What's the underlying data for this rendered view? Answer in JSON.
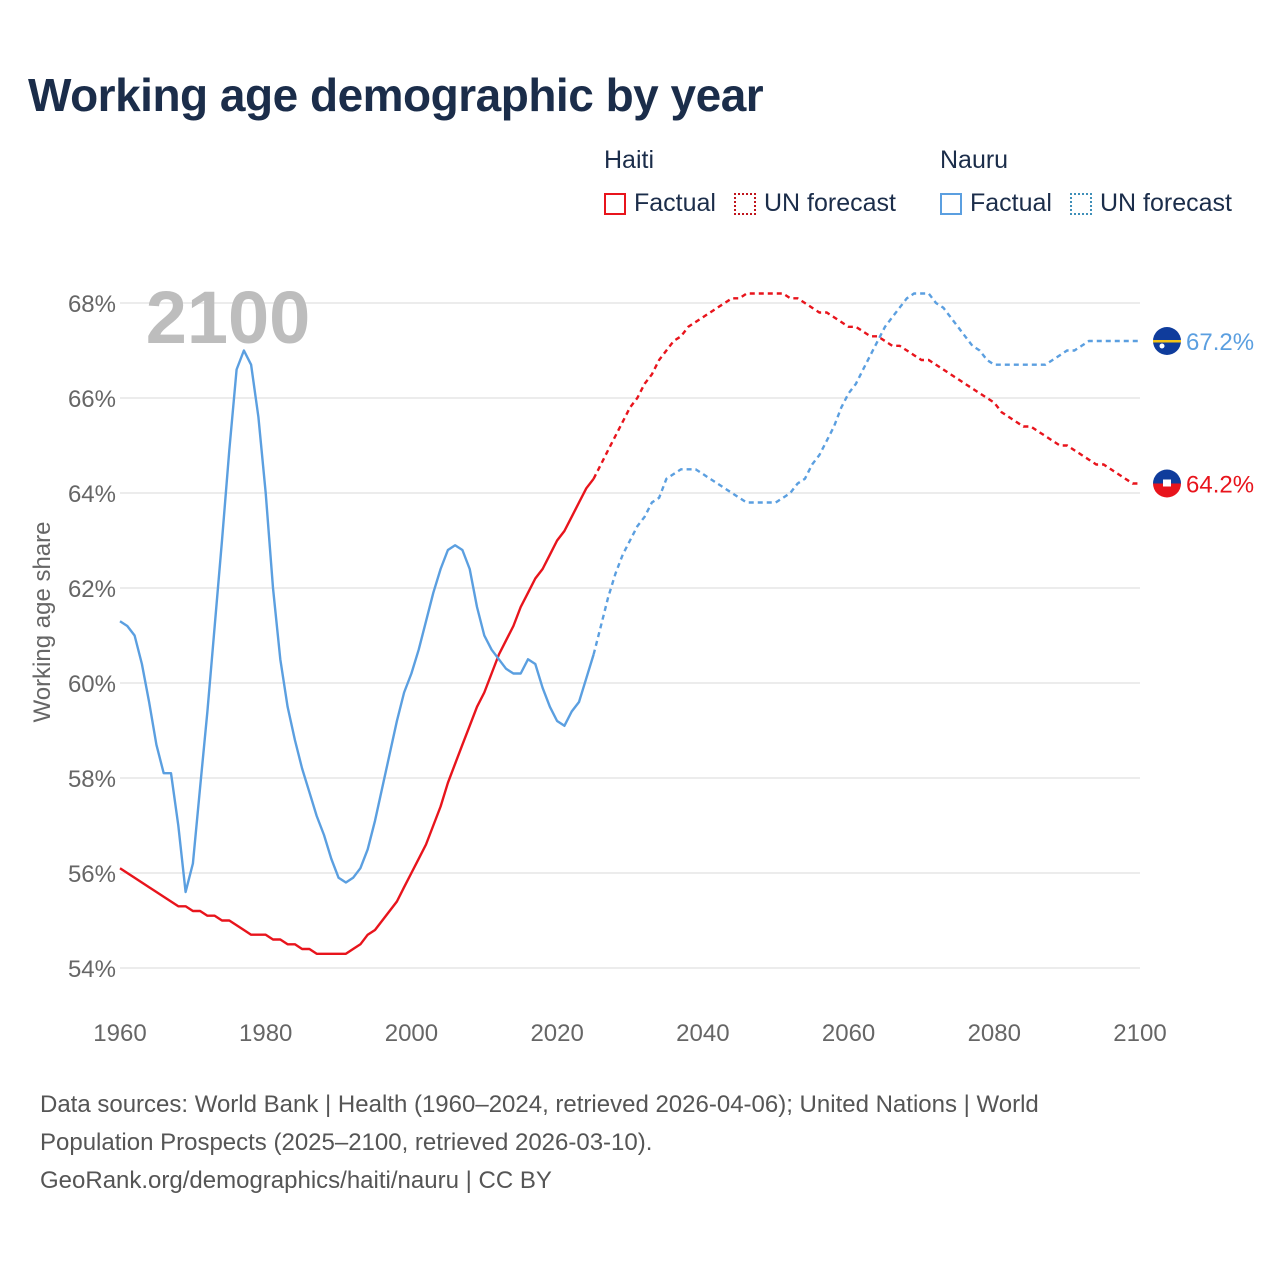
{
  "title": "Working age demographic by year",
  "legend": {
    "groups": [
      {
        "name": "Haiti",
        "color": "#e8141c",
        "factual_label": "Factual",
        "forecast_label": "UN forecast"
      },
      {
        "name": "Nauru",
        "color": "#5b9fe0",
        "factual_label": "Factual",
        "forecast_label": "UN forecast"
      }
    ]
  },
  "year_watermark": "2100",
  "source": {
    "line1": "Data sources: World Bank | Health (1960–2024, retrieved 2026-04-06); United Nations | World",
    "line2": "Population Prospects (2025–2100, retrieved 2026-03-10).",
    "line3": "GeoRank.org/demographics/haiti/nauru | CC BY"
  },
  "chart_data": {
    "type": "line",
    "title": "Working age demographic by year",
    "xlabel": "",
    "ylabel": "Working age share",
    "xlim": [
      1960,
      2100
    ],
    "ylim": [
      54,
      68
    ],
    "x_ticks": [
      "1960",
      "1980",
      "2000",
      "2020",
      "2040",
      "2060",
      "2080",
      "2100"
    ],
    "y_ticks": [
      "54%",
      "56%",
      "58%",
      "60%",
      "62%",
      "64%",
      "66%",
      "68%"
    ],
    "grid": true,
    "factual_end_year": 2024,
    "series": [
      {
        "name": "Haiti",
        "color": "#e8141c",
        "end_label": "64.2%",
        "end_value": 64.2,
        "points": [
          [
            1960,
            56.1
          ],
          [
            1962,
            55.9
          ],
          [
            1964,
            55.7
          ],
          [
            1966,
            55.5
          ],
          [
            1968,
            55.3
          ],
          [
            1969,
            55.3
          ],
          [
            1970,
            55.2
          ],
          [
            1971,
            55.2
          ],
          [
            1972,
            55.1
          ],
          [
            1973,
            55.1
          ],
          [
            1974,
            55.0
          ],
          [
            1975,
            55.0
          ],
          [
            1976,
            54.9
          ],
          [
            1977,
            54.8
          ],
          [
            1978,
            54.7
          ],
          [
            1980,
            54.7
          ],
          [
            1981,
            54.6
          ],
          [
            1982,
            54.6
          ],
          [
            1983,
            54.5
          ],
          [
            1984,
            54.5
          ],
          [
            1985,
            54.4
          ],
          [
            1986,
            54.4
          ],
          [
            1987,
            54.3
          ],
          [
            1989,
            54.3
          ],
          [
            1991,
            54.3
          ],
          [
            1992,
            54.4
          ],
          [
            1993,
            54.5
          ],
          [
            1994,
            54.7
          ],
          [
            1995,
            54.8
          ],
          [
            1996,
            55.0
          ],
          [
            1997,
            55.2
          ],
          [
            1998,
            55.4
          ],
          [
            1999,
            55.7
          ],
          [
            2000,
            56.0
          ],
          [
            2001,
            56.3
          ],
          [
            2002,
            56.6
          ],
          [
            2003,
            57.0
          ],
          [
            2004,
            57.4
          ],
          [
            2005,
            57.9
          ],
          [
            2006,
            58.3
          ],
          [
            2007,
            58.7
          ],
          [
            2008,
            59.1
          ],
          [
            2009,
            59.5
          ],
          [
            2010,
            59.8
          ],
          [
            2011,
            60.2
          ],
          [
            2012,
            60.6
          ],
          [
            2013,
            60.9
          ],
          [
            2014,
            61.2
          ],
          [
            2015,
            61.6
          ],
          [
            2016,
            61.9
          ],
          [
            2017,
            62.2
          ],
          [
            2018,
            62.4
          ],
          [
            2019,
            62.7
          ],
          [
            2020,
            63.0
          ],
          [
            2021,
            63.2
          ],
          [
            2022,
            63.5
          ],
          [
            2023,
            63.8
          ],
          [
            2024,
            64.1
          ],
          [
            2025,
            64.3
          ],
          [
            2026,
            64.6
          ],
          [
            2027,
            64.9
          ],
          [
            2028,
            65.2
          ],
          [
            2029,
            65.5
          ],
          [
            2030,
            65.8
          ],
          [
            2031,
            66.0
          ],
          [
            2032,
            66.3
          ],
          [
            2033,
            66.5
          ],
          [
            2034,
            66.8
          ],
          [
            2035,
            67.0
          ],
          [
            2036,
            67.2
          ],
          [
            2037,
            67.3
          ],
          [
            2038,
            67.5
          ],
          [
            2039,
            67.6
          ],
          [
            2040,
            67.7
          ],
          [
            2041,
            67.8
          ],
          [
            2042,
            67.9
          ],
          [
            2043,
            68.0
          ],
          [
            2044,
            68.1
          ],
          [
            2045,
            68.1
          ],
          [
            2046,
            68.2
          ],
          [
            2048,
            68.2
          ],
          [
            2050,
            68.2
          ],
          [
            2051,
            68.2
          ],
          [
            2052,
            68.1
          ],
          [
            2053,
            68.1
          ],
          [
            2054,
            68.0
          ],
          [
            2055,
            67.9
          ],
          [
            2056,
            67.8
          ],
          [
            2057,
            67.8
          ],
          [
            2058,
            67.7
          ],
          [
            2059,
            67.6
          ],
          [
            2060,
            67.5
          ],
          [
            2061,
            67.5
          ],
          [
            2062,
            67.4
          ],
          [
            2063,
            67.3
          ],
          [
            2064,
            67.3
          ],
          [
            2065,
            67.2
          ],
          [
            2066,
            67.1
          ],
          [
            2067,
            67.1
          ],
          [
            2068,
            67.0
          ],
          [
            2069,
            66.9
          ],
          [
            2070,
            66.8
          ],
          [
            2071,
            66.8
          ],
          [
            2072,
            66.7
          ],
          [
            2073,
            66.6
          ],
          [
            2074,
            66.5
          ],
          [
            2075,
            66.4
          ],
          [
            2076,
            66.3
          ],
          [
            2077,
            66.2
          ],
          [
            2078,
            66.1
          ],
          [
            2079,
            66.0
          ],
          [
            2080,
            65.9
          ],
          [
            2081,
            65.7
          ],
          [
            2082,
            65.6
          ],
          [
            2083,
            65.5
          ],
          [
            2084,
            65.4
          ],
          [
            2085,
            65.4
          ],
          [
            2086,
            65.3
          ],
          [
            2087,
            65.2
          ],
          [
            2088,
            65.1
          ],
          [
            2089,
            65.0
          ],
          [
            2090,
            65.0
          ],
          [
            2091,
            64.9
          ],
          [
            2092,
            64.8
          ],
          [
            2093,
            64.7
          ],
          [
            2094,
            64.6
          ],
          [
            2095,
            64.6
          ],
          [
            2096,
            64.5
          ],
          [
            2097,
            64.4
          ],
          [
            2098,
            64.3
          ],
          [
            2099,
            64.2
          ],
          [
            2100,
            64.2
          ]
        ]
      },
      {
        "name": "Nauru",
        "color": "#5b9fe0",
        "end_label": "67.2%",
        "end_value": 67.2,
        "points": [
          [
            1960,
            61.3
          ],
          [
            1961,
            61.2
          ],
          [
            1962,
            61.0
          ],
          [
            1963,
            60.4
          ],
          [
            1964,
            59.6
          ],
          [
            1965,
            58.7
          ],
          [
            1966,
            58.1
          ],
          [
            1967,
            58.1
          ],
          [
            1968,
            57.0
          ],
          [
            1969,
            55.6
          ],
          [
            1970,
            56.2
          ],
          [
            1971,
            57.8
          ],
          [
            1972,
            59.4
          ],
          [
            1973,
            61.2
          ],
          [
            1974,
            63.0
          ],
          [
            1975,
            64.9
          ],
          [
            1976,
            66.6
          ],
          [
            1977,
            67.0
          ],
          [
            1978,
            66.7
          ],
          [
            1979,
            65.6
          ],
          [
            1980,
            64.0
          ],
          [
            1981,
            62.0
          ],
          [
            1982,
            60.5
          ],
          [
            1983,
            59.5
          ],
          [
            1984,
            58.8
          ],
          [
            1985,
            58.2
          ],
          [
            1986,
            57.7
          ],
          [
            1987,
            57.2
          ],
          [
            1988,
            56.8
          ],
          [
            1989,
            56.3
          ],
          [
            1990,
            55.9
          ],
          [
            1991,
            55.8
          ],
          [
            1992,
            55.9
          ],
          [
            1993,
            56.1
          ],
          [
            1994,
            56.5
          ],
          [
            1995,
            57.1
          ],
          [
            1996,
            57.8
          ],
          [
            1997,
            58.5
          ],
          [
            1998,
            59.2
          ],
          [
            1999,
            59.8
          ],
          [
            2000,
            60.2
          ],
          [
            2001,
            60.7
          ],
          [
            2002,
            61.3
          ],
          [
            2003,
            61.9
          ],
          [
            2004,
            62.4
          ],
          [
            2005,
            62.8
          ],
          [
            2006,
            62.9
          ],
          [
            2007,
            62.8
          ],
          [
            2008,
            62.4
          ],
          [
            2009,
            61.6
          ],
          [
            2010,
            61.0
          ],
          [
            2011,
            60.7
          ],
          [
            2012,
            60.5
          ],
          [
            2013,
            60.3
          ],
          [
            2014,
            60.2
          ],
          [
            2015,
            60.2
          ],
          [
            2016,
            60.5
          ],
          [
            2017,
            60.4
          ],
          [
            2018,
            59.9
          ],
          [
            2019,
            59.5
          ],
          [
            2020,
            59.2
          ],
          [
            2021,
            59.1
          ],
          [
            2022,
            59.4
          ],
          [
            2023,
            59.6
          ],
          [
            2024,
            60.1
          ],
          [
            2025,
            60.6
          ],
          [
            2026,
            61.2
          ],
          [
            2027,
            61.8
          ],
          [
            2028,
            62.3
          ],
          [
            2029,
            62.7
          ],
          [
            2030,
            63.0
          ],
          [
            2031,
            63.3
          ],
          [
            2032,
            63.5
          ],
          [
            2033,
            63.8
          ],
          [
            2034,
            63.9
          ],
          [
            2035,
            64.3
          ],
          [
            2036,
            64.4
          ],
          [
            2037,
            64.5
          ],
          [
            2039,
            64.5
          ],
          [
            2040,
            64.4
          ],
          [
            2041,
            64.3
          ],
          [
            2042,
            64.2
          ],
          [
            2043,
            64.1
          ],
          [
            2044,
            64.0
          ],
          [
            2045,
            63.9
          ],
          [
            2046,
            63.8
          ],
          [
            2048,
            63.8
          ],
          [
            2050,
            63.8
          ],
          [
            2051,
            63.9
          ],
          [
            2052,
            64.0
          ],
          [
            2053,
            64.2
          ],
          [
            2054,
            64.3
          ],
          [
            2055,
            64.6
          ],
          [
            2056,
            64.8
          ],
          [
            2057,
            65.1
          ],
          [
            2058,
            65.4
          ],
          [
            2059,
            65.8
          ],
          [
            2060,
            66.1
          ],
          [
            2061,
            66.3
          ],
          [
            2062,
            66.6
          ],
          [
            2063,
            66.9
          ],
          [
            2064,
            67.2
          ],
          [
            2065,
            67.5
          ],
          [
            2066,
            67.7
          ],
          [
            2067,
            67.9
          ],
          [
            2068,
            68.1
          ],
          [
            2069,
            68.2
          ],
          [
            2070,
            68.2
          ],
          [
            2071,
            68.2
          ],
          [
            2072,
            68.0
          ],
          [
            2073,
            67.9
          ],
          [
            2074,
            67.7
          ],
          [
            2075,
            67.5
          ],
          [
            2076,
            67.3
          ],
          [
            2077,
            67.1
          ],
          [
            2078,
            67.0
          ],
          [
            2079,
            66.8
          ],
          [
            2080,
            66.7
          ],
          [
            2082,
            66.7
          ],
          [
            2084,
            66.7
          ],
          [
            2086,
            66.7
          ],
          [
            2087,
            66.7
          ],
          [
            2088,
            66.8
          ],
          [
            2089,
            66.9
          ],
          [
            2090,
            67.0
          ],
          [
            2091,
            67.0
          ],
          [
            2092,
            67.1
          ],
          [
            2093,
            67.2
          ],
          [
            2095,
            67.2
          ],
          [
            2097,
            67.2
          ],
          [
            2100,
            67.2
          ]
        ]
      }
    ]
  }
}
